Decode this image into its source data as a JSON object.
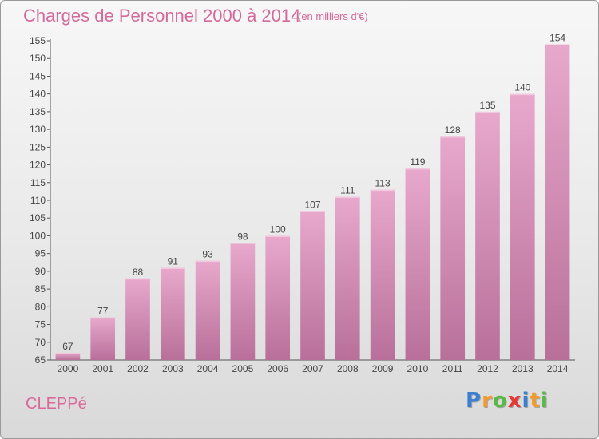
{
  "title": "Charges de Personnel 2000 à 2014",
  "subtitle": "(en milliers d'€)",
  "commune": "CLEPPé",
  "logo": {
    "text": "Proxiti",
    "letters": [
      {
        "ch": "P",
        "color": "#3a7fd0"
      },
      {
        "ch": "r",
        "color": "#f39b2a"
      },
      {
        "ch": "o",
        "color": "#58b947"
      },
      {
        "ch": "x",
        "color": "#e53935"
      },
      {
        "ch": "i",
        "color": "#3a7fd0"
      },
      {
        "ch": "t",
        "color": "#f39b2a"
      },
      {
        "ch": "i",
        "color": "#58b947"
      }
    ]
  },
  "chart_data": {
    "type": "bar",
    "title": "Charges de Personnel 2000 à 2014",
    "subtitle": "(en milliers d'€)",
    "categories": [
      "2000",
      "2001",
      "2002",
      "2003",
      "2004",
      "2005",
      "2006",
      "2007",
      "2008",
      "2009",
      "2010",
      "2011",
      "2012",
      "2013",
      "2014"
    ],
    "values": [
      67,
      77,
      88,
      91,
      93,
      98,
      100,
      107,
      111,
      113,
      119,
      128,
      135,
      140,
      154
    ],
    "ylim": [
      65,
      155
    ],
    "yticks": [
      65,
      70,
      75,
      80,
      85,
      90,
      95,
      100,
      105,
      110,
      115,
      120,
      125,
      130,
      135,
      140,
      145,
      150,
      155
    ],
    "grid": false,
    "bar_color_top": "#e8a8cc",
    "bar_color_bottom": "#b8709a",
    "label_color": "#444444"
  }
}
